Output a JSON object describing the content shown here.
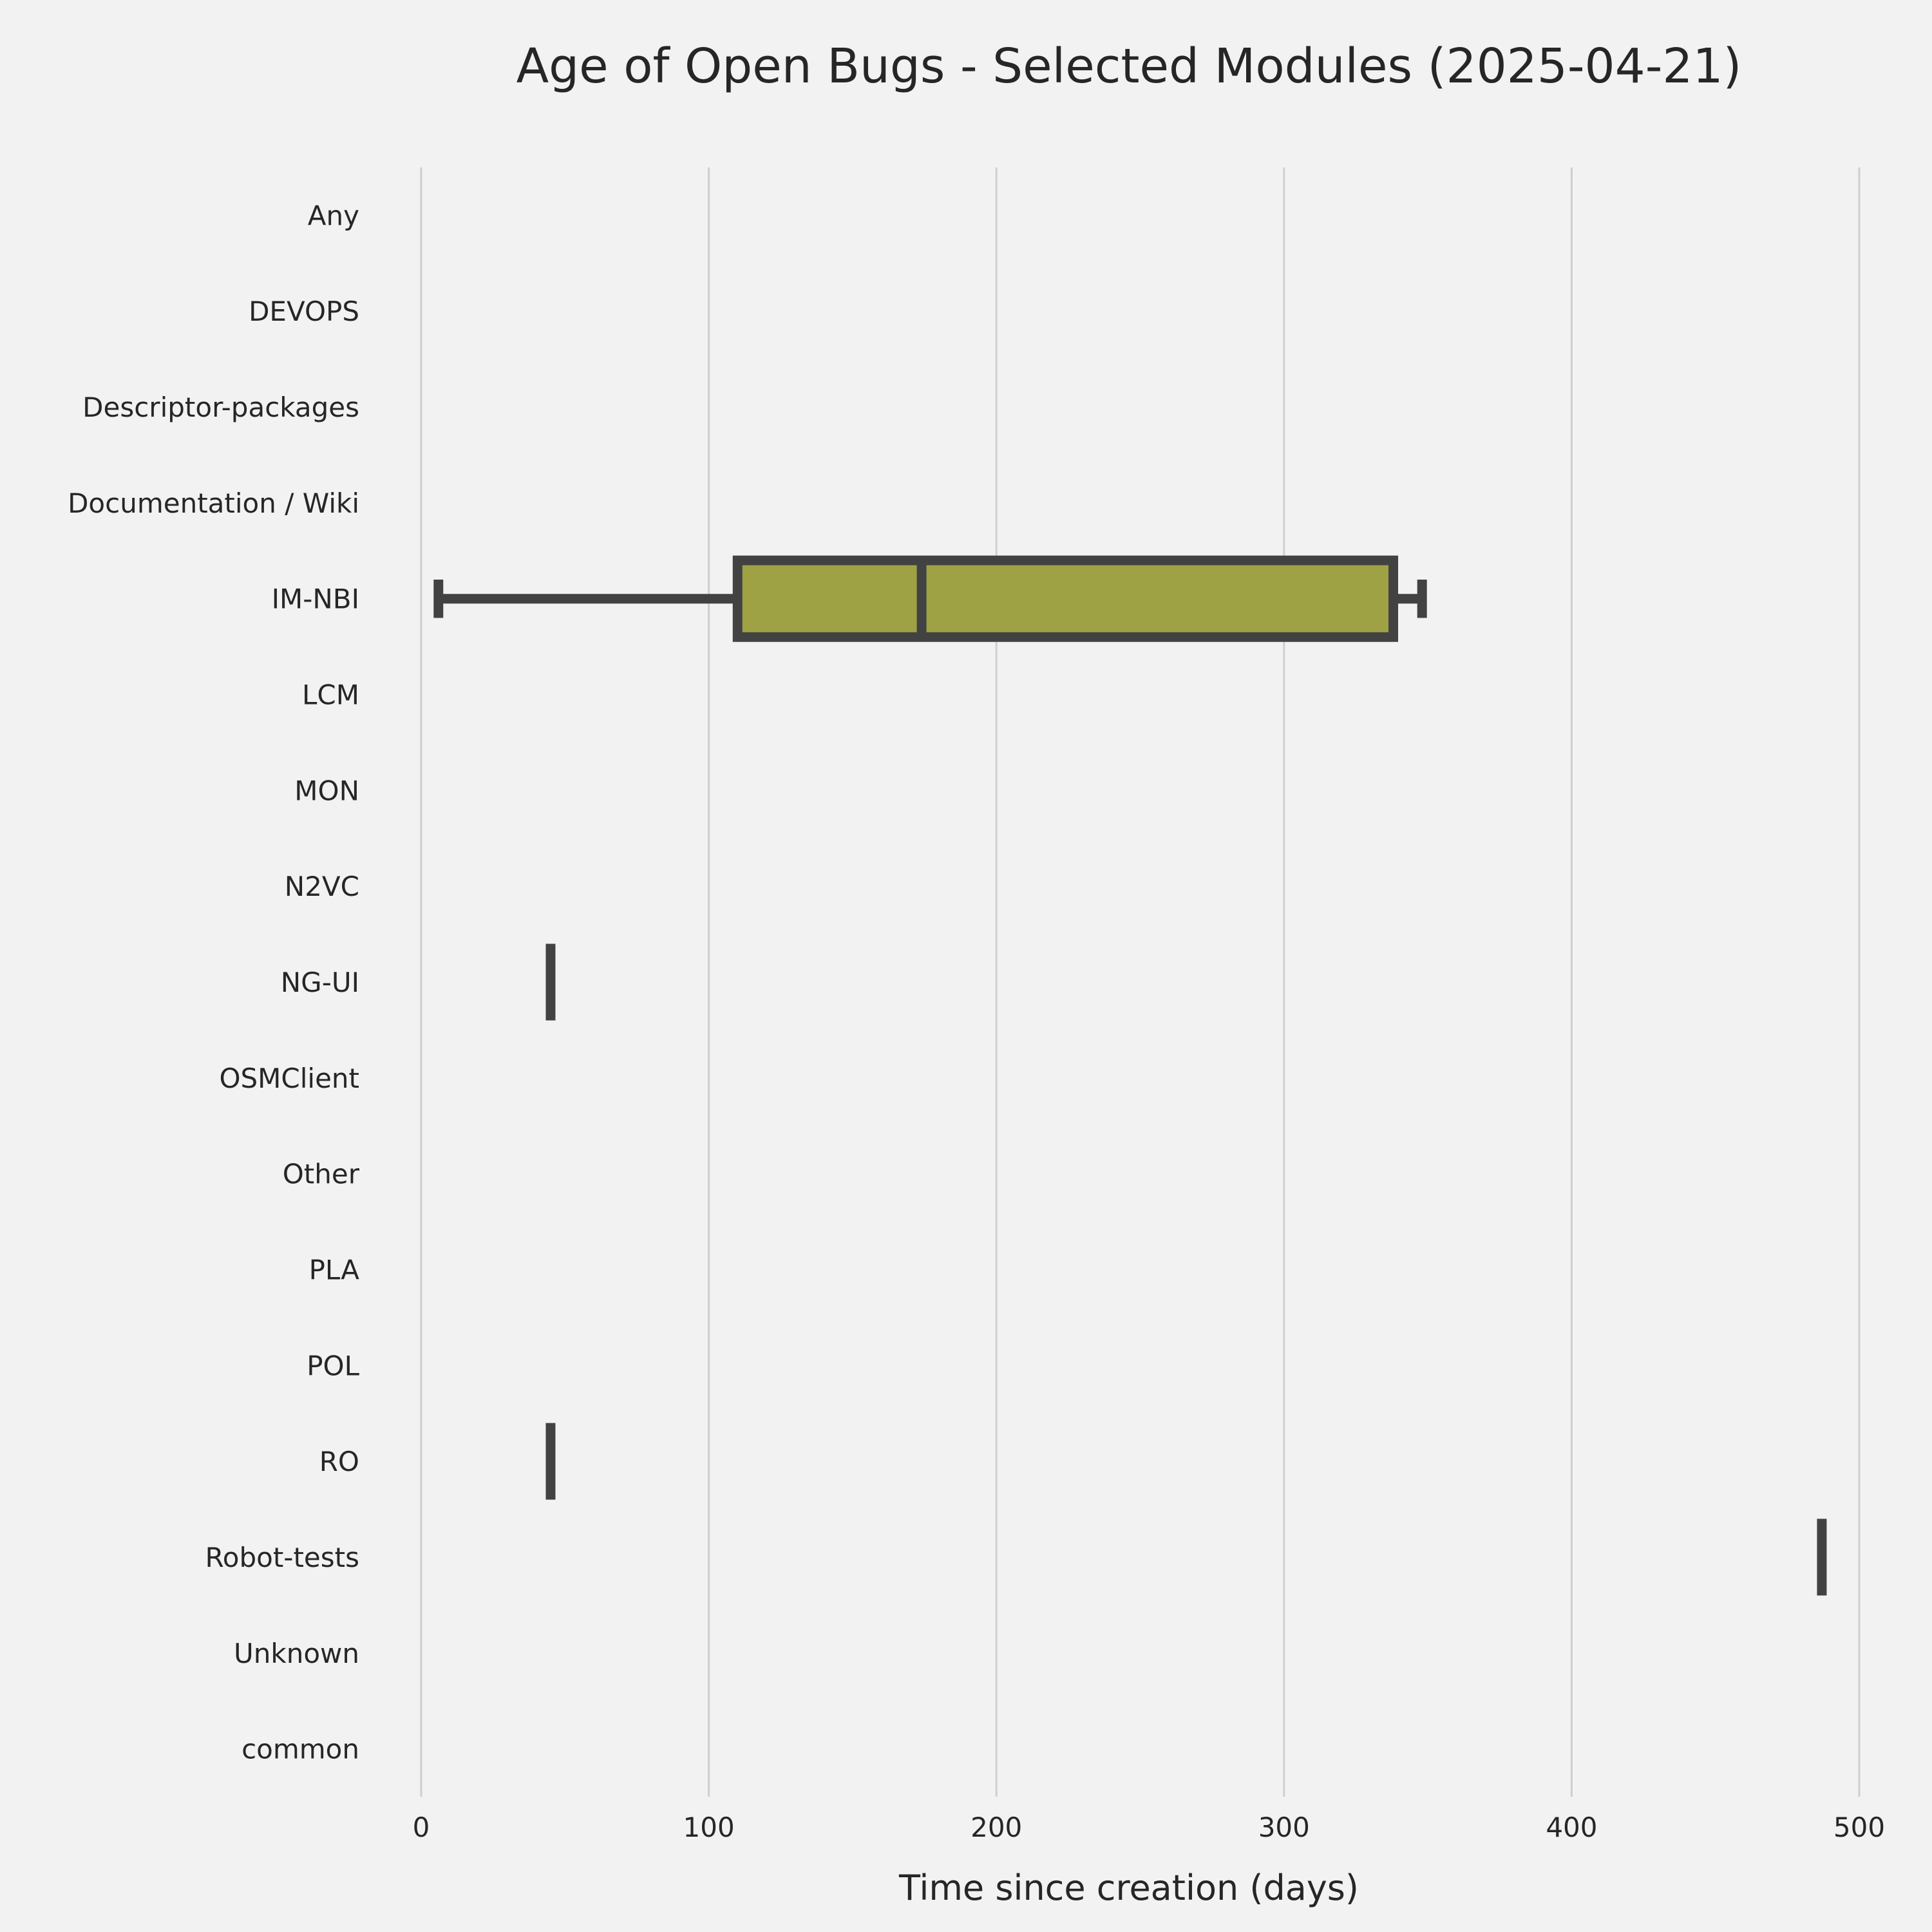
{
  "chart_data": {
    "type": "boxplot",
    "orientation": "horizontal",
    "title": "Age of Open Bugs - Selected Modules (2025-04-21)",
    "xlabel": "Time since creation (days)",
    "ylabel": "",
    "xlim": [
      0,
      500
    ],
    "xticks": [
      0,
      100,
      200,
      300,
      400,
      500
    ],
    "grid": "vertical",
    "colors": {
      "background": "#f2f2f2",
      "box_fill": "#9ea245",
      "line": "#424242",
      "grid": "#cfcfcf"
    },
    "categories": [
      "Any",
      "DEVOPS",
      "Descriptor-packages",
      "Documentation / Wiki",
      "IM-NBI",
      "LCM",
      "MON",
      "N2VC",
      "NG-UI",
      "OSMClient",
      "Other",
      "PLA",
      "POL",
      "RO",
      "Robot-tests",
      "Unknown",
      "common"
    ],
    "boxes": [
      {
        "category": "IM-NBI",
        "whisker_low": 6,
        "q1": 110,
        "median": 174,
        "q3": 338,
        "whisker_high": 348
      },
      {
        "category": "NG-UI",
        "whisker_low": 45,
        "q1": 45,
        "median": 45,
        "q3": 45,
        "whisker_high": 45
      },
      {
        "category": "RO",
        "whisker_low": 45,
        "q1": 45,
        "median": 45,
        "q3": 45,
        "whisker_high": 45
      },
      {
        "category": "Robot-tests",
        "whisker_low": 487,
        "q1": 487,
        "median": 487,
        "q3": 487,
        "whisker_high": 487
      }
    ]
  }
}
